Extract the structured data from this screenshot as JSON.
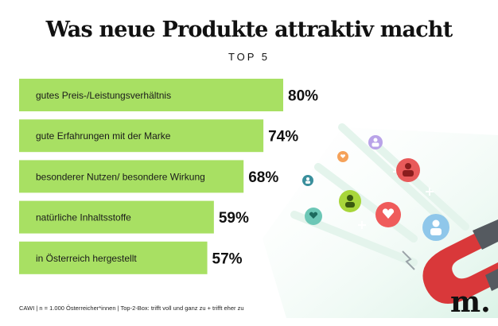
{
  "title": "Was neue Produkte attraktiv macht",
  "subtitle": "TOP 5",
  "footnote": "CAWI | n = 1.000 Österreicher*innen | Top-2-Box: trifft voll und ganz zu + trifft eher zu",
  "logo": "m.",
  "colors": {
    "bar": "#a8e063",
    "text": "#111111",
    "magnet_red": "#d9383a",
    "magnet_gray": "#555a60"
  },
  "chart_data": {
    "type": "bar",
    "orientation": "horizontal",
    "title": "Was neue Produkte attraktiv macht",
    "subtitle": "TOP 5",
    "categories": [
      "gutes Preis-/Leistungsverhältnis",
      "gute Erfahrungen mit der Marke",
      "besonderer Nutzen/ besondere Wirkung",
      "natürliche Inhaltsstoffe",
      "in Österreich hergestellt"
    ],
    "values": [
      80,
      74,
      68,
      59,
      57
    ],
    "value_labels": [
      "80%",
      "74%",
      "68%",
      "59%",
      "57%"
    ],
    "unit": "%",
    "xlim": [
      0,
      100
    ],
    "grid": false,
    "legend": "none"
  }
}
